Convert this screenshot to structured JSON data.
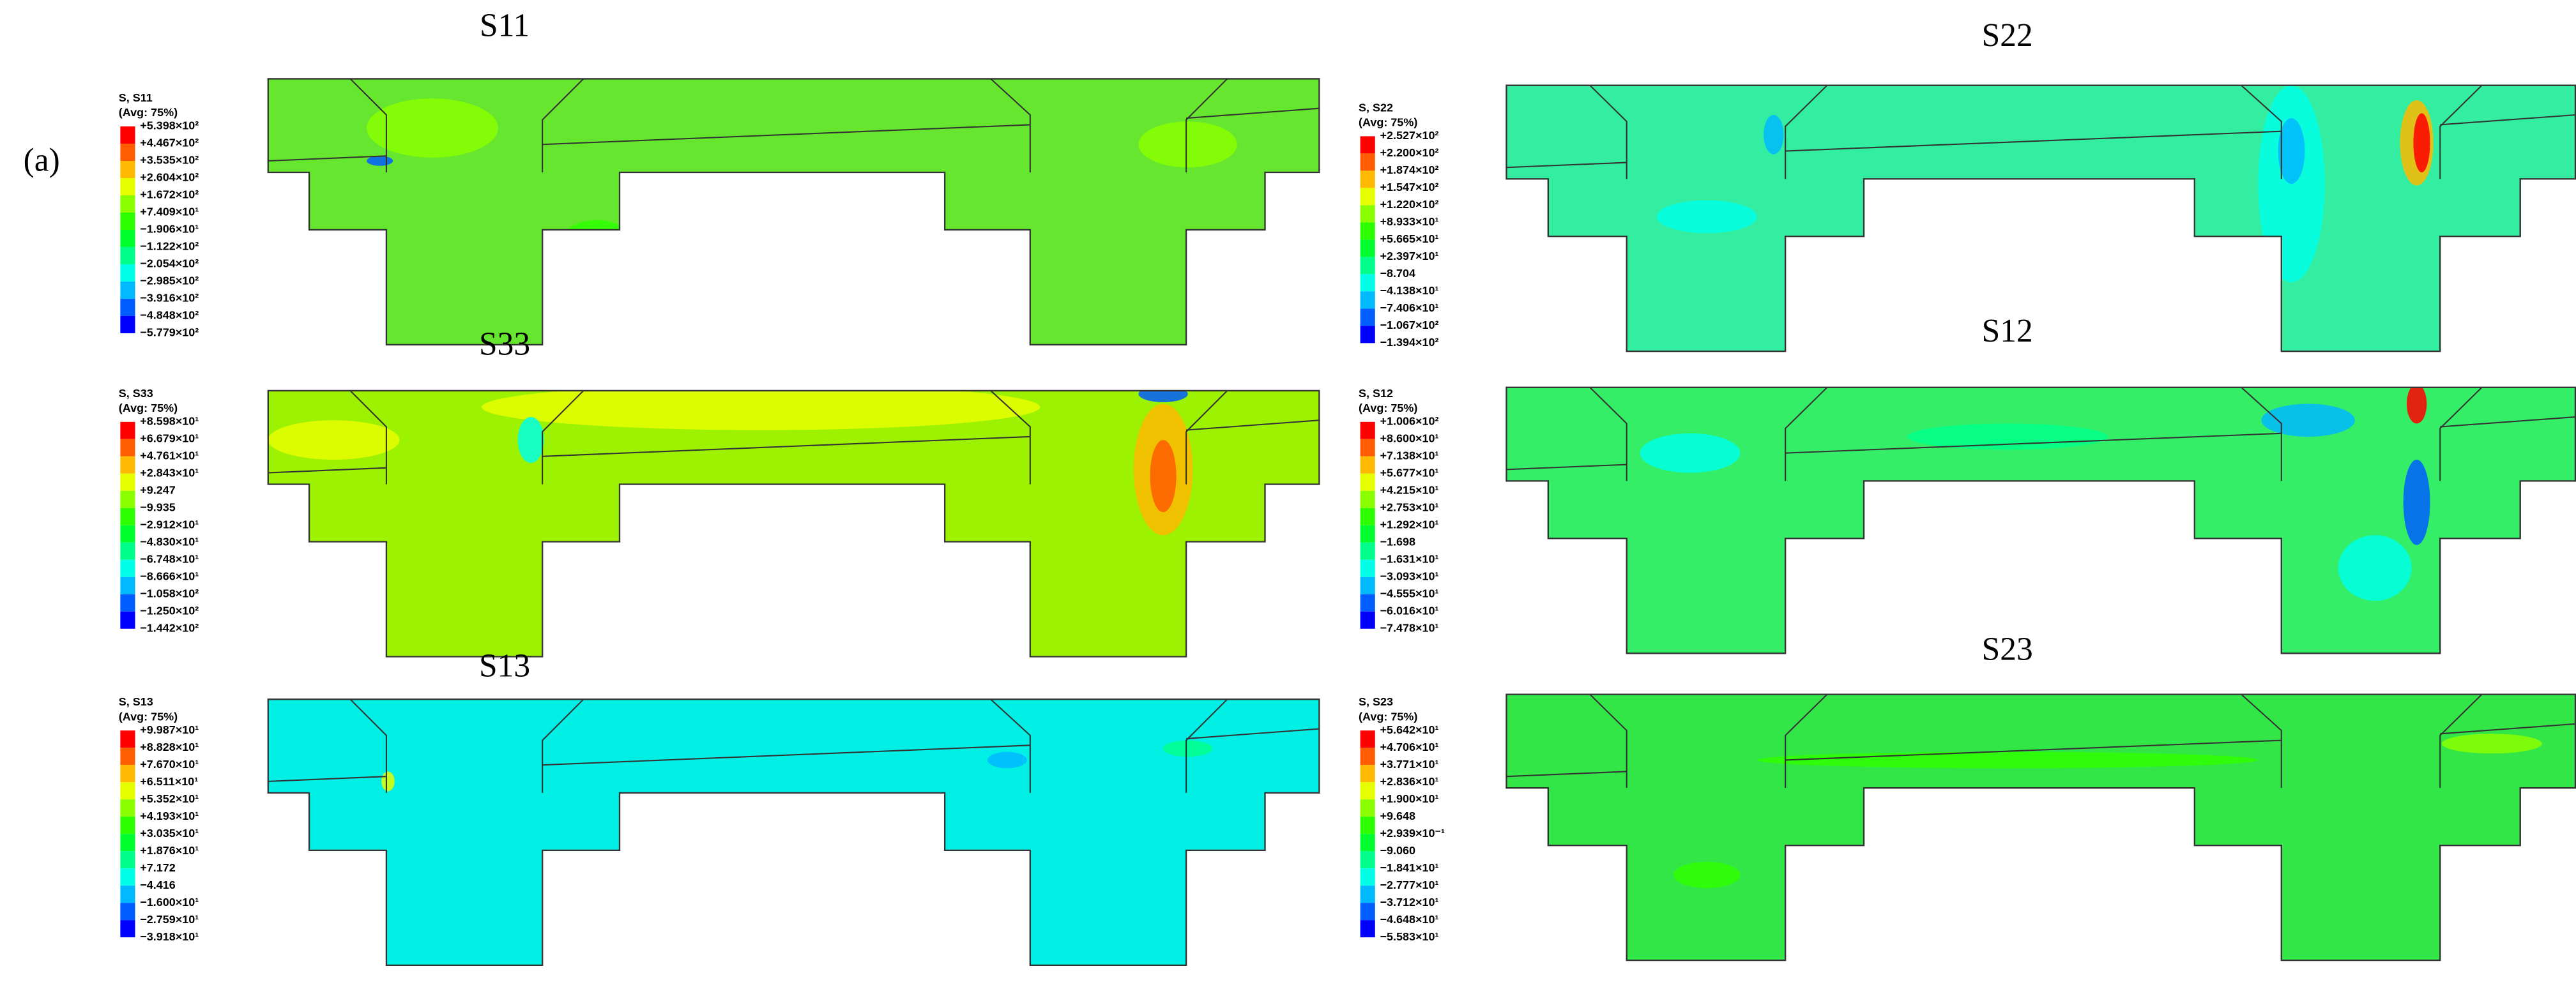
{
  "label": "(a)",
  "panels": [
    {
      "title": "S11",
      "legend_title": "S, S11",
      "legend_avg": "(Avg: 75%)",
      "legend_labels": [
        "+5.398×10²",
        "+4.467×10²",
        "+3.535×10²",
        "+2.604×10²",
        "+1.672×10²",
        "+7.409×10¹",
        "−1.906×10¹",
        "−1.122×10²",
        "−2.054×10²",
        "−2.985×10²",
        "−3.916×10²",
        "−4.848×10²",
        "−5.779×10²"
      ]
    },
    {
      "title": "S22",
      "legend_title": "S, S22",
      "legend_avg": "(Avg: 75%)",
      "legend_labels": [
        "+2.527×10²",
        "+2.200×10²",
        "+1.874×10²",
        "+1.547×10²",
        "+1.220×10²",
        "+8.933×10¹",
        "+5.665×10¹",
        "+2.397×10¹",
        "−8.704",
        "−4.138×10¹",
        "−7.406×10¹",
        "−1.067×10²",
        "−1.394×10²"
      ]
    },
    {
      "title": "S33",
      "legend_title": "S, S33",
      "legend_avg": "(Avg: 75%)",
      "legend_labels": [
        "+8.598×10¹",
        "+6.679×10¹",
        "+4.761×10¹",
        "+2.843×10¹",
        "+9.247",
        "−9.935",
        "−2.912×10¹",
        "−4.830×10¹",
        "−6.748×10¹",
        "−8.666×10¹",
        "−1.058×10²",
        "−1.250×10²",
        "−1.442×10²"
      ]
    },
    {
      "title": "S12",
      "legend_title": "S, S12",
      "legend_avg": "(Avg: 75%)",
      "legend_labels": [
        "+1.006×10²",
        "+8.600×10¹",
        "+7.138×10¹",
        "+5.677×10¹",
        "+4.215×10¹",
        "+2.753×10¹",
        "+1.292×10¹",
        "−1.698",
        "−1.631×10¹",
        "−3.093×10¹",
        "−4.555×10¹",
        "−6.016×10¹",
        "−7.478×10¹"
      ]
    },
    {
      "title": "S13",
      "legend_title": "S, S13",
      "legend_avg": "(Avg: 75%)",
      "legend_labels": [
        "+9.987×10¹",
        "+8.828×10¹",
        "+7.670×10¹",
        "+6.511×10¹",
        "+5.352×10¹",
        "+4.193×10¹",
        "+3.035×10¹",
        "+1.876×10¹",
        "+7.172",
        "−4.416",
        "−1.600×10¹",
        "−2.759×10¹",
        "−3.918×10¹"
      ]
    },
    {
      "title": "S23",
      "legend_title": "S, S23",
      "legend_avg": "(Avg: 75%)",
      "legend_labels": [
        "+5.642×10¹",
        "+4.706×10¹",
        "+3.771×10¹",
        "+2.836×10¹",
        "+1.900×10¹",
        "+9.648",
        "+2.939×10⁻¹",
        "−9.060",
        "−1.841×10¹",
        "−2.777×10¹",
        "−3.712×10¹",
        "−4.648×10¹",
        "−5.583×10¹"
      ]
    }
  ]
}
